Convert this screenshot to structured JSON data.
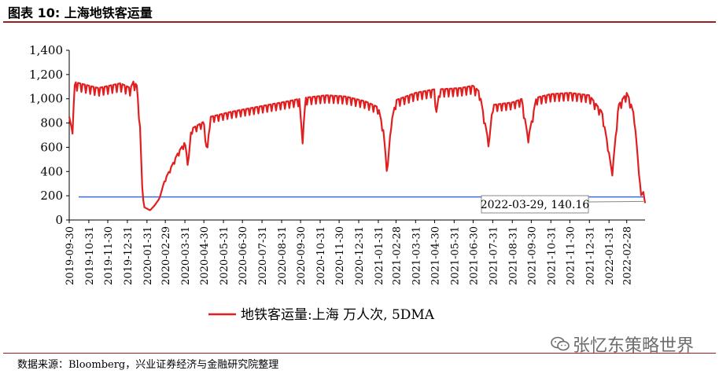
{
  "header": {
    "title": "图表 10:  上海地铁客运量"
  },
  "footer": {
    "source": "数据来源：Bloomberg，兴业证券经济与金融研究院整理"
  },
  "watermark": {
    "text": "张忆东策略世界"
  },
  "chart_data": {
    "type": "line",
    "title": "",
    "ylim": [
      0,
      1400
    ],
    "yticks": [
      0,
      200,
      400,
      600,
      800,
      1000,
      1200,
      1400
    ],
    "ytick_labels": [
      "0",
      "200",
      "400",
      "600",
      "800",
      "1,000",
      "1,200",
      "1,400"
    ],
    "x_start": "2019-09-30",
    "x_end": "2022-03-29",
    "xtick_labels": [
      "2019-09-30",
      "2019-10-31",
      "2019-11-30",
      "2019-12-31",
      "2020-01-31",
      "2020-02-29",
      "2020-03-31",
      "2020-04-30",
      "2020-05-31",
      "2020-06-30",
      "2020-07-31",
      "2020-08-31",
      "2020-09-30",
      "2020-10-31",
      "2020-11-30",
      "2020-12-31",
      "2021-01-31",
      "2021-02-28",
      "2021-03-31",
      "2021-04-30",
      "2021-05-31",
      "2021-06-30",
      "2021-07-31",
      "2021-08-31",
      "2021-09-30",
      "2021-10-31",
      "2021-11-30",
      "2021-12-31",
      "2022-01-31",
      "2022-02-28"
    ],
    "series": [
      {
        "name": "地铁客运量:上海 万人次, 5DMA",
        "color": "#e02020",
        "points": [
          [
            "2019-09-30",
            860
          ],
          [
            "2019-10-05",
            740
          ],
          [
            "2019-10-09",
            1150
          ],
          [
            "2019-11-15",
            1100
          ],
          [
            "2019-12-20",
            1140
          ],
          [
            "2020-01-05",
            1100
          ],
          [
            "2020-01-10",
            1160
          ],
          [
            "2020-01-15",
            1120
          ],
          [
            "2020-01-20",
            780
          ],
          [
            "2020-01-24",
            200
          ],
          [
            "2020-01-27",
            105
          ],
          [
            "2020-02-05",
            80
          ],
          [
            "2020-02-12",
            120
          ],
          [
            "2020-02-20",
            180
          ],
          [
            "2020-02-28",
            330
          ],
          [
            "2020-03-10",
            450
          ],
          [
            "2020-03-20",
            560
          ],
          [
            "2020-03-31",
            650
          ],
          [
            "2020-04-05",
            460
          ],
          [
            "2020-04-10",
            760
          ],
          [
            "2020-04-30",
            820
          ],
          [
            "2020-05-05",
            560
          ],
          [
            "2020-05-10",
            860
          ],
          [
            "2020-06-10",
            900
          ],
          [
            "2020-07-10",
            930
          ],
          [
            "2020-08-10",
            960
          ],
          [
            "2020-09-10",
            990
          ],
          [
            "2020-09-28",
            1010
          ],
          [
            "2020-10-03",
            660
          ],
          [
            "2020-10-08",
            1020
          ],
          [
            "2020-11-10",
            1040
          ],
          [
            "2020-12-10",
            1030
          ],
          [
            "2021-01-10",
            990
          ],
          [
            "2021-01-31",
            940
          ],
          [
            "2021-02-08",
            750
          ],
          [
            "2021-02-14",
            390
          ],
          [
            "2021-02-20",
            800
          ],
          [
            "2021-02-28",
            1000
          ],
          [
            "2021-03-31",
            1060
          ],
          [
            "2021-04-30",
            1090
          ],
          [
            "2021-05-03",
            900
          ],
          [
            "2021-05-08",
            1090
          ],
          [
            "2021-06-10",
            1100
          ],
          [
            "2021-06-30",
            1120
          ],
          [
            "2021-07-10",
            1070
          ],
          [
            "2021-07-25",
            630
          ],
          [
            "2021-07-31",
            960
          ],
          [
            "2021-08-31",
            980
          ],
          [
            "2021-09-15",
            1010
          ],
          [
            "2021-09-25",
            680
          ],
          [
            "2021-10-08",
            1020
          ],
          [
            "2021-10-31",
            1050
          ],
          [
            "2021-11-30",
            1060
          ],
          [
            "2021-12-31",
            1040
          ],
          [
            "2022-01-20",
            900
          ],
          [
            "2022-01-31",
            560
          ],
          [
            "2022-02-05",
            380
          ],
          [
            "2022-02-15",
            960
          ],
          [
            "2022-02-28",
            1060
          ],
          [
            "2022-03-05",
            1000
          ],
          [
            "2022-03-12",
            870
          ],
          [
            "2022-03-18",
            480
          ],
          [
            "2022-03-23",
            190
          ],
          [
            "2022-03-26",
            240
          ],
          [
            "2022-03-29",
            140.16
          ]
        ]
      }
    ],
    "reference_line": {
      "value": 190,
      "color": "#3a6fd6"
    },
    "annotation": {
      "text": "2022-03-29, 140.16",
      "x": "2022-03-29",
      "y": 140.16
    }
  }
}
